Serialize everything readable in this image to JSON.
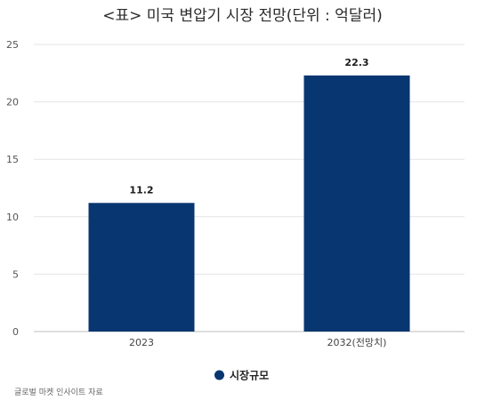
{
  "chart_data": {
    "type": "bar",
    "title": "<표> 미국 변압기 시장 전망(단위 : 억달러)",
    "categories": [
      "2023",
      "2032(전망치)"
    ],
    "series": [
      {
        "name": "시장규모",
        "values": [
          11.2,
          22.3
        ],
        "data_labels": [
          "11.2",
          "22.3"
        ],
        "color": "#083670"
      }
    ],
    "ylim": [
      0,
      25
    ],
    "yticks": [
      0,
      5,
      10,
      15,
      20,
      25
    ],
    "grid": true,
    "legend": "bottom-center",
    "xlabel": "",
    "ylabel": ""
  },
  "source": "글로벌 마켓 인사이트 자료",
  "colors": {
    "bar": "#083670",
    "grid": "#e3e3e3"
  }
}
